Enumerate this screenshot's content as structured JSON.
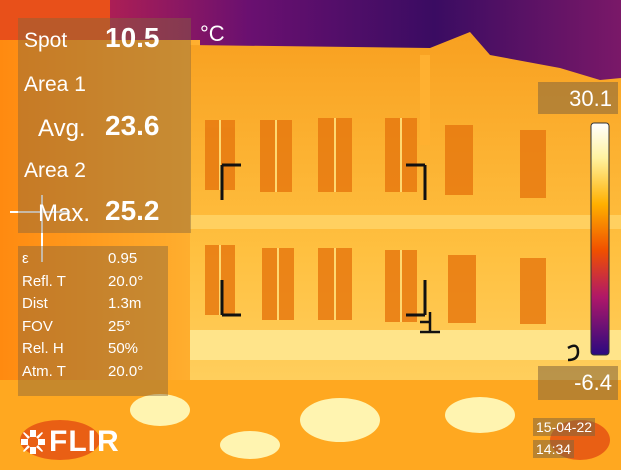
{
  "measurements": {
    "spot": {
      "label": "Spot",
      "value": "10.5",
      "unit": "°C"
    },
    "area1": {
      "label": "Area 1",
      "stat_label": "Avg.",
      "value": "23.6"
    },
    "area2": {
      "label": "Area 2",
      "stat_label": "Max.",
      "value": "25.2"
    }
  },
  "parameters": [
    {
      "label": "ε",
      "value": "0.95"
    },
    {
      "label": "Refl. T",
      "value": "20.0°"
    },
    {
      "label": "Dist",
      "value": "1.3m"
    },
    {
      "label": "FOV",
      "value": "25°"
    },
    {
      "label": "Rel. H",
      "value": "50%"
    },
    {
      "label": "Atm. T",
      "value": "20.0°"
    }
  ],
  "scale": {
    "max": "30.1",
    "min": "-6.4"
  },
  "timestamp": {
    "date": "15-04-22",
    "time": "14:34"
  },
  "brand": {
    "name": "FLIR"
  },
  "colors": {
    "hot": "#fffbe0",
    "warm": "#ffb000",
    "mid": "#f05000",
    "cool": "#9b1060",
    "cold": "#2a0a60",
    "overlay": "#826440"
  }
}
